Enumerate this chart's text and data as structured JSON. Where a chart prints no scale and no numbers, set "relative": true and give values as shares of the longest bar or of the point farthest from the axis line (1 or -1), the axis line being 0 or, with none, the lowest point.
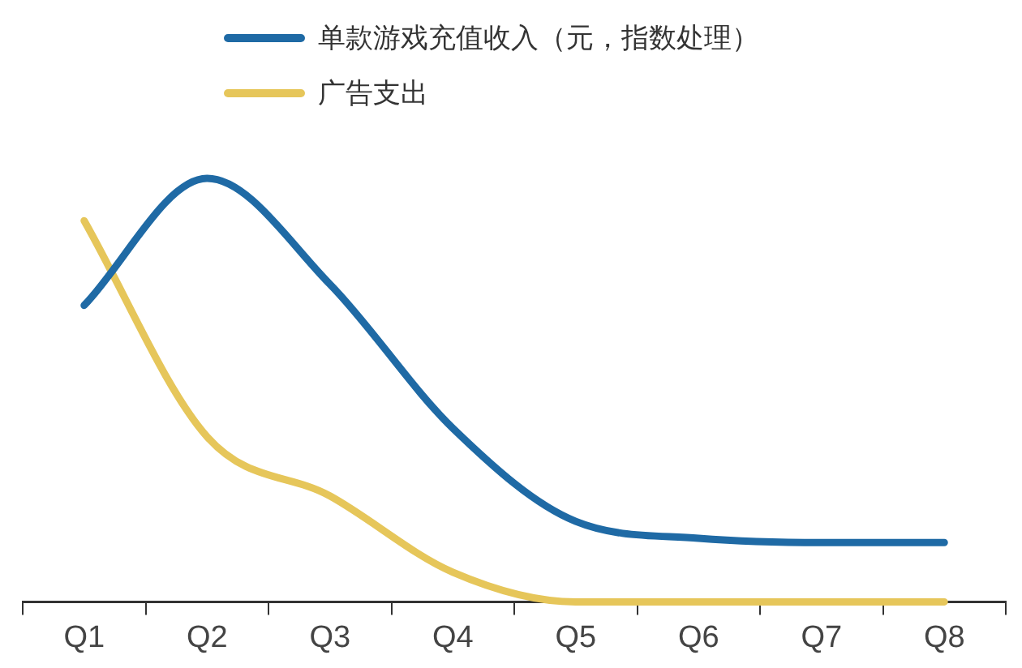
{
  "chart_data": {
    "type": "line",
    "relative": true,
    "categories": [
      "Q1",
      "Q2",
      "Q3",
      "Q4",
      "Q5",
      "Q6",
      "Q7",
      "Q8"
    ],
    "series": [
      {
        "name": "单款游戏充值收入（元，指数处理）",
        "color": "#1f6aa5",
        "values": [
          0.7,
          1.0,
          0.75,
          0.41,
          0.19,
          0.15,
          0.14,
          0.14
        ]
      },
      {
        "name": "广告支出",
        "color": "#e6c65a",
        "values": [
          0.9,
          0.39,
          0.25,
          0.07,
          0,
          0,
          0,
          0
        ]
      }
    ],
    "legend": "top",
    "grid": false,
    "marker": "none",
    "line_style": "solid"
  }
}
